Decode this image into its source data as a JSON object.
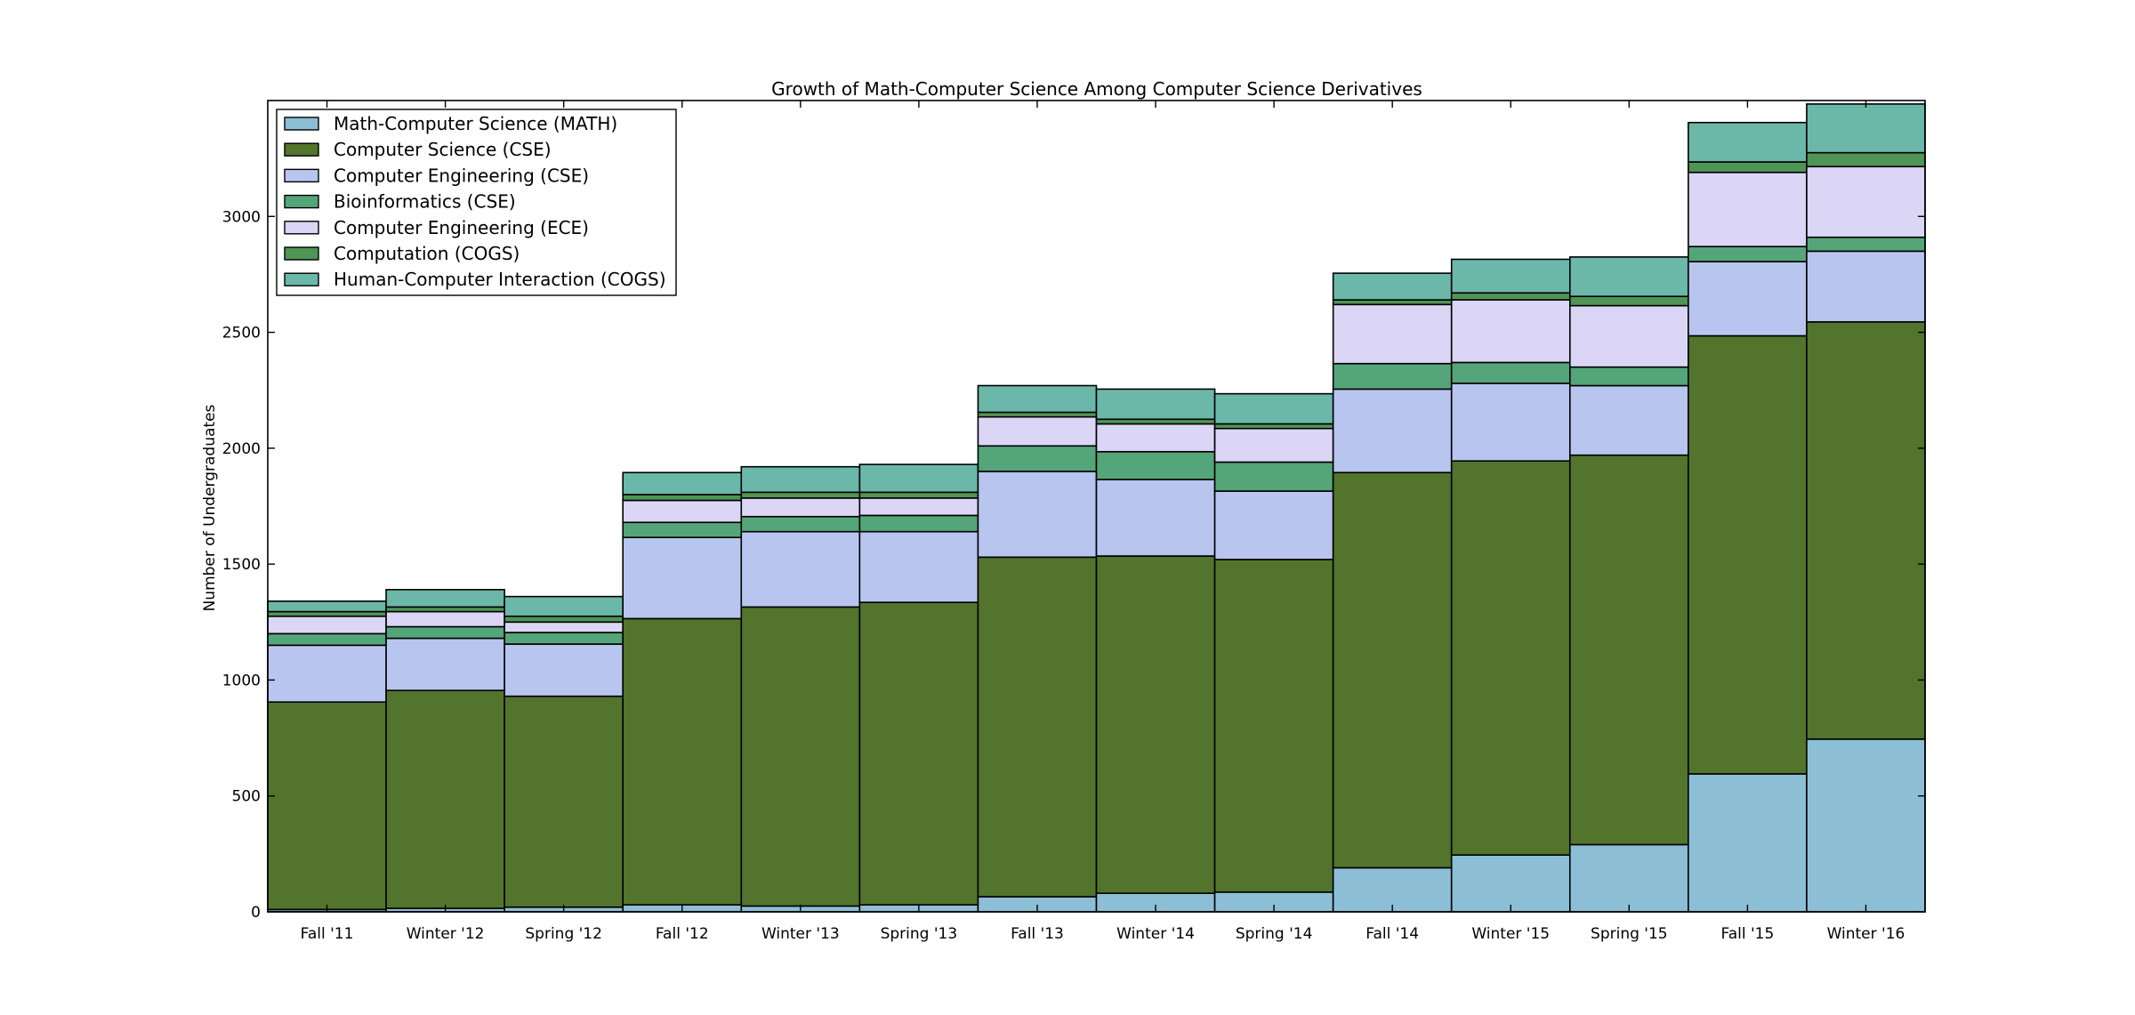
{
  "chart_data": {
    "type": "bar",
    "stacked": true,
    "title": "Growth of Math-Computer Science Among Computer Science Derivatives",
    "xlabel": "",
    "ylabel": "Number of Undergraduates",
    "ylim": [
      0,
      3500
    ],
    "yticks": [
      0,
      500,
      1000,
      1500,
      2000,
      2500,
      3000
    ],
    "legend_position": "top-left",
    "categories": [
      "Fall '11",
      "Winter '12",
      "Spring '12",
      "Fall '12",
      "Winter '13",
      "Spring '13",
      "Fall '13",
      "Winter '14",
      "Spring '14",
      "Fall '14",
      "Winter '15",
      "Spring '15",
      "Fall '15",
      "Winter '16"
    ],
    "series": [
      {
        "name": "Math-Computer Science (MATH)",
        "color": "#8cbfd6",
        "values": [
          10,
          15,
          20,
          30,
          25,
          30,
          65,
          80,
          85,
          190,
          245,
          290,
          595,
          745
        ]
      },
      {
        "name": "Computer Science (CSE)",
        "color": "#52742c",
        "values": [
          895,
          940,
          910,
          1235,
          1290,
          1305,
          1465,
          1455,
          1435,
          1705,
          1700,
          1680,
          1890,
          1800
        ]
      },
      {
        "name": "Computer Engineering (CSE)",
        "color": "#b8c5ef",
        "values": [
          245,
          225,
          225,
          350,
          325,
          305,
          370,
          330,
          295,
          360,
          335,
          300,
          320,
          305
        ]
      },
      {
        "name": "Bioinformatics (CSE)",
        "color": "#55a57a",
        "values": [
          50,
          50,
          50,
          65,
          65,
          70,
          110,
          120,
          125,
          110,
          90,
          80,
          65,
          60
        ]
      },
      {
        "name": "Computer Engineering (ECE)",
        "color": "#dbd6f5",
        "values": [
          75,
          65,
          45,
          95,
          80,
          75,
          125,
          120,
          145,
          255,
          270,
          265,
          320,
          305
        ]
      },
      {
        "name": "Computation (COGS)",
        "color": "#4f9556",
        "values": [
          20,
          20,
          25,
          25,
          25,
          25,
          20,
          20,
          20,
          20,
          30,
          40,
          45,
          60
        ]
      },
      {
        "name": "Human-Computer Interaction (COGS)",
        "color": "#6bb8aa",
        "values": [
          45,
          75,
          85,
          95,
          110,
          120,
          115,
          130,
          130,
          115,
          145,
          170,
          170,
          210
        ]
      }
    ]
  }
}
